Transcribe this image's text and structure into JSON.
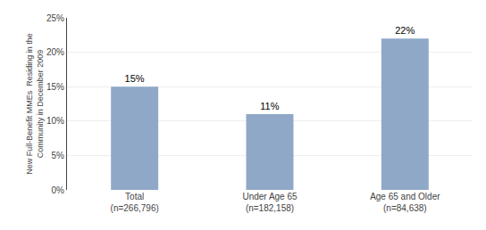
{
  "chart_data": {
    "type": "bar",
    "categories": [
      "Total\n(n=266,796)",
      "Under Age 65\n(n=182,158)",
      "Age 65 and Older\n(n=84,638)"
    ],
    "values": [
      0.15,
      0.11,
      0.22
    ],
    "value_labels": [
      "15%",
      "11%",
      "22%"
    ],
    "data_labels": true,
    "color": "#8fa8c8",
    "ylabel": "New Full-Benefit MMEs  Residing in the\nCommunity in December 2009",
    "ylim": [
      0,
      0.25
    ],
    "yticks": [
      {
        "value": 0.0,
        "label": "0%"
      },
      {
        "value": 0.05,
        "label": "5%"
      },
      {
        "value": 0.1,
        "label": "10%"
      },
      {
        "value": 0.15,
        "label": "15%"
      },
      {
        "value": 0.2,
        "label": "20%"
      },
      {
        "value": 0.25,
        "label": "25%"
      }
    ],
    "grid": true
  }
}
